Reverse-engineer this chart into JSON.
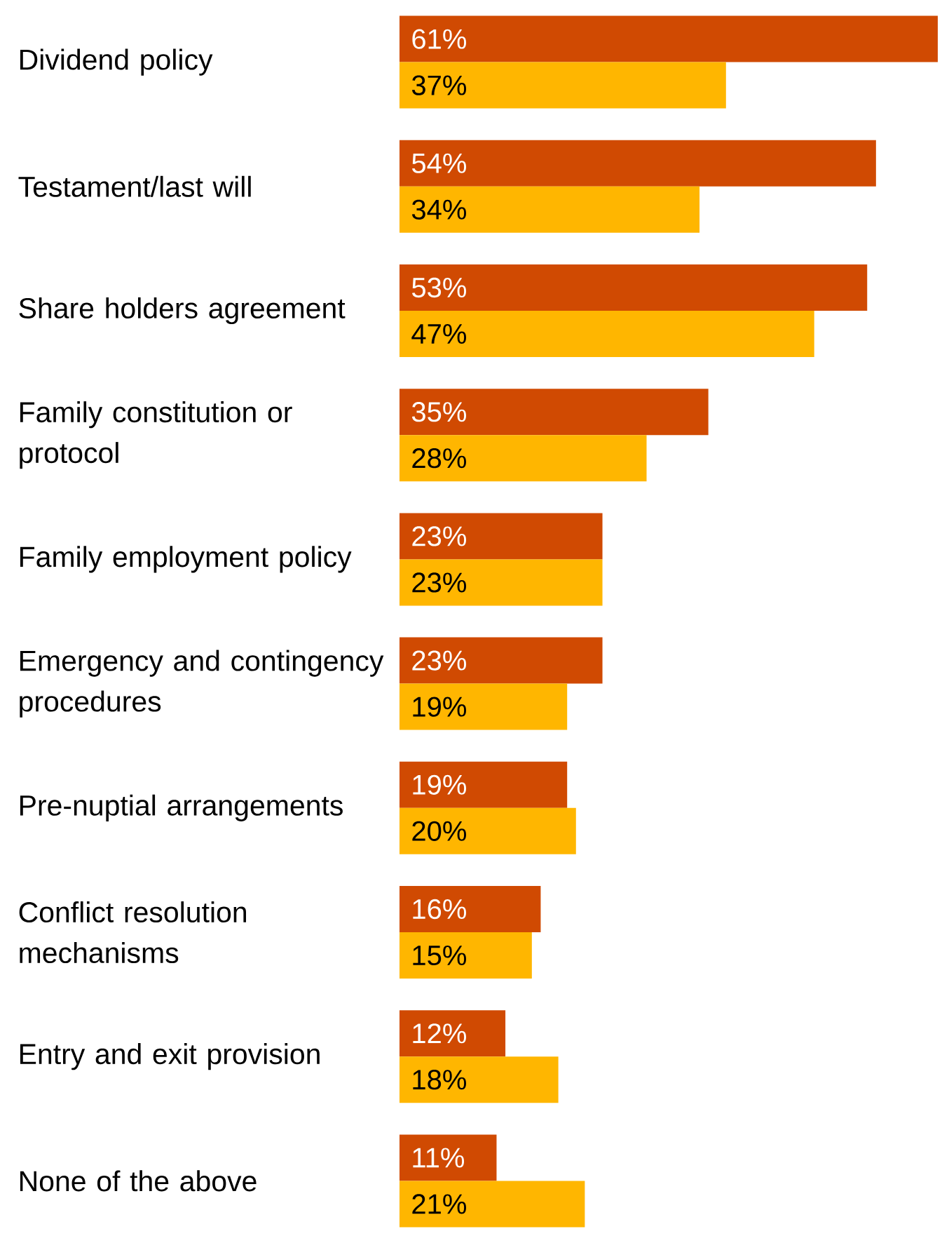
{
  "chart_data": {
    "type": "bar",
    "orientation": "horizontal",
    "categories": [
      "Dividend policy",
      "Testament/last will",
      "Share holders agreement",
      "Family constitution or protocol",
      "Family employment policy",
      "Emergency and contingency procedures",
      "Pre-nuptial arrangements",
      "Conflict resolution mechanisms",
      "Entry and exit provision",
      "None of the above"
    ],
    "series": [
      {
        "color": "#d04a02",
        "values": [
          61,
          54,
          53,
          35,
          23,
          23,
          19,
          16,
          12,
          11
        ],
        "value_labels": [
          "61%",
          "54%",
          "53%",
          "35%",
          "23%",
          "23%",
          "19%",
          "16%",
          "12%",
          "11%"
        ]
      },
      {
        "color": "#ffb600",
        "values": [
          37,
          34,
          47,
          28,
          23,
          19,
          20,
          15,
          18,
          21
        ],
        "value_labels": [
          "37%",
          "34%",
          "47%",
          "28%",
          "23%",
          "19%",
          "20%",
          "15%",
          "18%",
          "21%"
        ]
      }
    ]
  }
}
